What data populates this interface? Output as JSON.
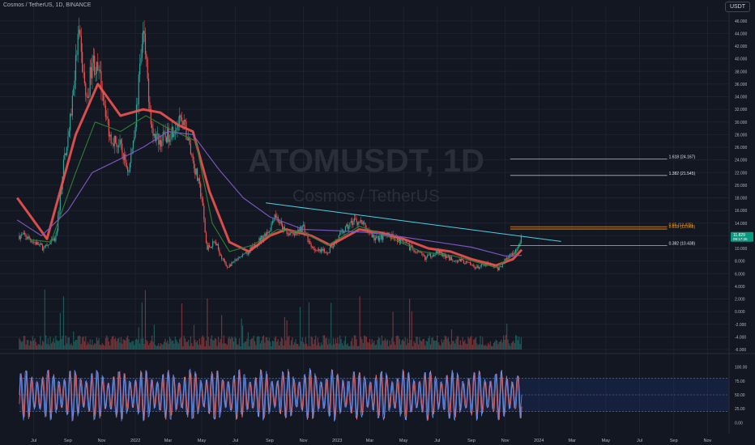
{
  "header": {
    "symbol_info": "Cosmos / TetherUS, 1D, BINANCE",
    "currency_button": "USDT"
  },
  "watermark": {
    "ticker": "ATOMUSDT, 1D",
    "name": "Cosmos / TetherUS"
  },
  "colors": {
    "background": "#131722",
    "grid": "#1e222d",
    "axis_text": "#b2b5be",
    "up": "#26a69a",
    "down": "#ef5350",
    "ma_fast": "#ef5350",
    "ma_mid": "#2e7d32",
    "ma_slow": "#7e57c2",
    "trendline": "#4dd0e1",
    "fib": "#b2b5be",
    "fib_hi": "#ff9800",
    "stoch_k": "#5b8def",
    "stoch_d": "#ef6c6c",
    "stoch_band": "#2962ff"
  },
  "chart_data": [
    {
      "type": "candlestick",
      "title": "ATOMUSDT, 1D",
      "x_tick_labels": [
        "Jul",
        "Sep",
        "Nov",
        "2022",
        "Mar",
        "May",
        "Jul",
        "Sep",
        "Nov",
        "2023",
        "Mar",
        "May",
        "Jul",
        "Sep",
        "Nov",
        "2024",
        "Mar",
        "May",
        "Jul",
        "Sep",
        "Nov"
      ],
      "y_tick_labels": [
        "46.000",
        "44.000",
        "42.000",
        "40.000",
        "38.000",
        "36.000",
        "34.000",
        "32.000",
        "30.000",
        "28.000",
        "26.000",
        "24.000",
        "22.000",
        "20.000",
        "18.000",
        "16.000",
        "14.000",
        "12.000",
        "10.000",
        "8.000",
        "6.000",
        "4.000",
        "2.000",
        "0.000",
        "-2.000",
        "-4.000",
        "-6.000"
      ],
      "ylim": [
        -6,
        47
      ],
      "price_path": [
        [
          "2021-06-15",
          12.0
        ],
        [
          "2021-07-20",
          10.0
        ],
        [
          "2021-08-10",
          11.5
        ],
        [
          "2021-08-25",
          24.0
        ],
        [
          "2021-09-05",
          30.0
        ],
        [
          "2021-09-20",
          44.0
        ],
        [
          "2021-10-05",
          33.0
        ],
        [
          "2021-10-15",
          40.0
        ],
        [
          "2021-11-01",
          36.0
        ],
        [
          "2021-11-15",
          28.0
        ],
        [
          "2021-12-05",
          26.0
        ],
        [
          "2021-12-20",
          22.0
        ],
        [
          "2022-01-01",
          30.0
        ],
        [
          "2022-01-15",
          44.0
        ],
        [
          "2022-02-01",
          28.0
        ],
        [
          "2022-02-15",
          27.0
        ],
        [
          "2022-03-01",
          28.0
        ],
        [
          "2022-03-20",
          30.0
        ],
        [
          "2022-04-01",
          29.0
        ],
        [
          "2022-04-15",
          24.0
        ],
        [
          "2022-05-01",
          18.0
        ],
        [
          "2022-05-10",
          10.0
        ],
        [
          "2022-05-25",
          11.0
        ],
        [
          "2022-06-15",
          7.0
        ],
        [
          "2022-07-01",
          8.0
        ],
        [
          "2022-07-20",
          9.0
        ],
        [
          "2022-08-10",
          11.0
        ],
        [
          "2022-09-01",
          13.0
        ],
        [
          "2022-09-10",
          15.5
        ],
        [
          "2022-09-25",
          13.0
        ],
        [
          "2022-10-15",
          12.0
        ],
        [
          "2022-11-01",
          13.5
        ],
        [
          "2022-11-10",
          11.0
        ],
        [
          "2022-11-25",
          9.5
        ],
        [
          "2022-12-15",
          9.5
        ],
        [
          "2023-01-10",
          12.5
        ],
        [
          "2023-02-01",
          14.5
        ],
        [
          "2023-02-15",
          14.0
        ],
        [
          "2023-03-10",
          11.5
        ],
        [
          "2023-04-01",
          12.0
        ],
        [
          "2023-04-20",
          11.5
        ],
        [
          "2023-05-15",
          10.0
        ],
        [
          "2023-06-10",
          8.5
        ],
        [
          "2023-07-01",
          9.5
        ],
        [
          "2023-07-20",
          8.5
        ],
        [
          "2023-08-15",
          8.0
        ],
        [
          "2023-09-10",
          7.0
        ],
        [
          "2023-10-01",
          7.5
        ],
        [
          "2023-10-20",
          6.8
        ],
        [
          "2023-11-05",
          8.5
        ],
        [
          "2023-11-20",
          9.8
        ],
        [
          "2023-12-01",
          11.829
        ]
      ],
      "moving_averages": [
        {
          "name": "MA fast",
          "color_key": "ma_fast",
          "points": [
            [
              "2021-06-01",
              18.0
            ],
            [
              "2021-07-25",
              11.5
            ],
            [
              "2021-09-15",
              28.0
            ],
            [
              "2021-10-25",
              36.0
            ],
            [
              "2021-12-05",
              31.0
            ],
            [
              "2022-01-15",
              32.0
            ],
            [
              "2022-02-15",
              31.5
            ],
            [
              "2022-03-20",
              29.5
            ],
            [
              "2022-04-15",
              28.5
            ],
            [
              "2022-05-15",
              19.0
            ],
            [
              "2022-06-20",
              11.0
            ],
            [
              "2022-07-25",
              9.5
            ],
            [
              "2022-09-01",
              12.0
            ],
            [
              "2022-10-01",
              13.0
            ],
            [
              "2022-11-15",
              12.0
            ],
            [
              "2022-12-20",
              10.5
            ],
            [
              "2023-02-10",
              13.0
            ],
            [
              "2023-03-20",
              12.5
            ],
            [
              "2023-05-01",
              11.5
            ],
            [
              "2023-06-15",
              10.0
            ],
            [
              "2023-07-25",
              9.5
            ],
            [
              "2023-09-01",
              8.3
            ],
            [
              "2023-10-15",
              7.3
            ],
            [
              "2023-11-15",
              8.3
            ],
            [
              "2023-12-01",
              9.8
            ]
          ]
        },
        {
          "name": "MA mid",
          "color_key": "ma_mid",
          "points": [
            [
              "2021-06-15",
              11.5
            ],
            [
              "2021-08-01",
              11.0
            ],
            [
              "2021-09-15",
              22.0
            ],
            [
              "2021-10-20",
              30.0
            ],
            [
              "2021-12-05",
              28.5
            ],
            [
              "2022-01-20",
              31.0
            ],
            [
              "2022-03-01",
              29.0
            ],
            [
              "2022-04-20",
              27.0
            ],
            [
              "2022-05-20",
              14.0
            ],
            [
              "2022-06-20",
              9.5
            ],
            [
              "2022-08-01",
              10.5
            ],
            [
              "2022-09-15",
              13.0
            ],
            [
              "2022-11-01",
              12.5
            ],
            [
              "2022-12-15",
              10.5
            ],
            [
              "2023-02-10",
              13.5
            ],
            [
              "2023-04-01",
              12.0
            ],
            [
              "2023-06-01",
              9.5
            ],
            [
              "2023-08-01",
              8.8
            ],
            [
              "2023-10-15",
              7.0
            ],
            [
              "2023-11-20",
              9.2
            ],
            [
              "2023-12-01",
              11.0
            ]
          ]
        },
        {
          "name": "MA slow",
          "color_key": "ma_slow",
          "points": [
            [
              "2021-06-01",
              14.5
            ],
            [
              "2021-07-15",
              12.0
            ],
            [
              "2021-09-01",
              16.0
            ],
            [
              "2021-10-15",
              22.0
            ],
            [
              "2021-12-01",
              24.0
            ],
            [
              "2022-01-15",
              26.0
            ],
            [
              "2022-03-01",
              28.5
            ],
            [
              "2022-04-15",
              28.0
            ],
            [
              "2022-06-01",
              22.5
            ],
            [
              "2022-07-15",
              18.0
            ],
            [
              "2022-09-01",
              15.0
            ],
            [
              "2022-11-01",
              13.0
            ],
            [
              "2023-01-01",
              12.8
            ],
            [
              "2023-03-01",
              12.5
            ],
            [
              "2023-05-01",
              11.8
            ],
            [
              "2023-07-01",
              11.0
            ],
            [
              "2023-09-01",
              10.2
            ],
            [
              "2023-11-01",
              8.8
            ],
            [
              "2023-12-01",
              8.9
            ]
          ]
        }
      ],
      "trendline": {
        "start": [
          "2022-08-25",
          17.2
        ],
        "end": [
          "2024-02-10",
          11.1
        ]
      },
      "fib_levels": [
        {
          "label": "1.618 (24.167)",
          "value": 24.167
        },
        {
          "label": "1.382 (21.545)",
          "value": 21.545
        },
        {
          "label": "0.65 (13.425)",
          "value": 13.425,
          "highlight": true
        },
        {
          "label": "0.618 (13.068)",
          "value": 13.068,
          "highlight": true
        },
        {
          "label": "0.382 (10.438)",
          "value": 10.438
        }
      ],
      "last_price": {
        "value": "11.829",
        "countdown": "09:17:25"
      },
      "volume_ylim_note": "volume bars at bottom of price pane"
    },
    {
      "type": "line",
      "title": "Stochastic RSI",
      "y_tick_labels": [
        "100.00",
        "75.00",
        "50.00",
        "25.00",
        "0.00"
      ],
      "ylim": [
        -8,
        108
      ],
      "band": [
        20,
        80
      ],
      "midline": 50,
      "oscillation_cycles": 92
    }
  ]
}
